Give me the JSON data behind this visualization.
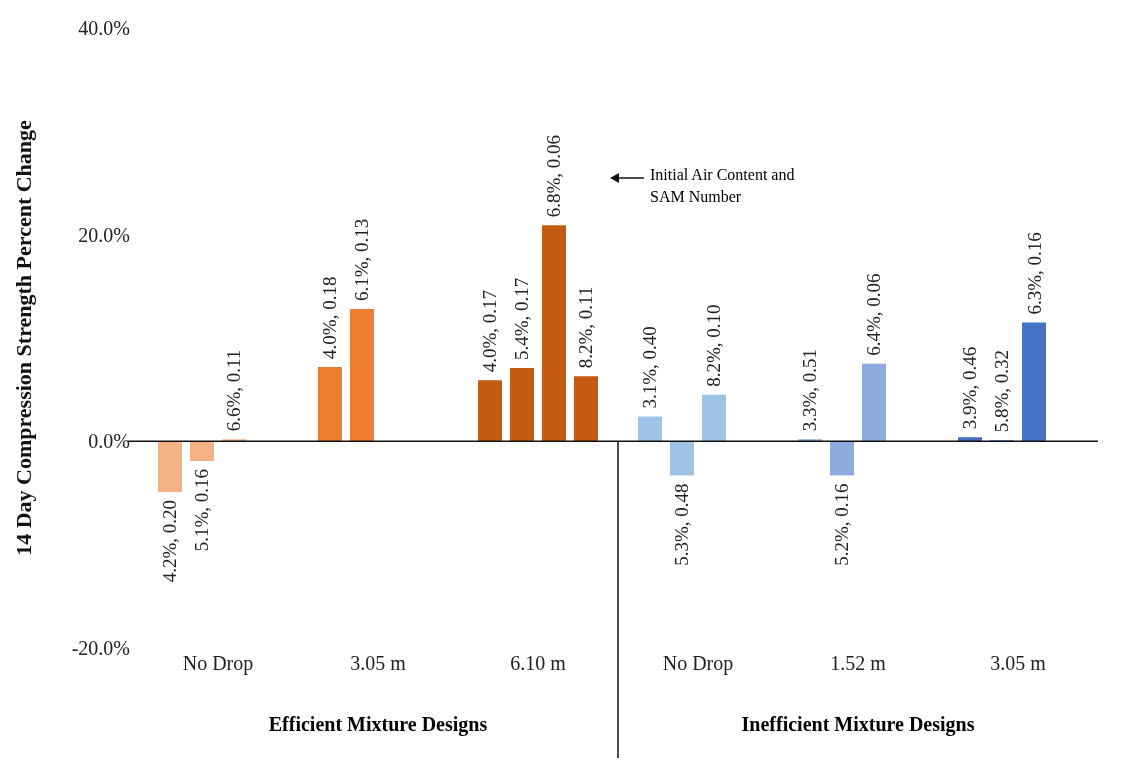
{
  "chart_data": {
    "type": "bar",
    "ylabel": "14 Day Compression Strength Percent Change",
    "categories": [
      "No Drop",
      "3.05 m",
      "6.10 m",
      "No Drop",
      "1.52 m",
      "3.05 m"
    ],
    "series": [
      {
        "colors": [
          "#f4b183",
          "#ed7d31",
          "#c55a11",
          "#9dc3e6",
          "#8faadc",
          "#4472c4"
        ],
        "values": [
          -4.9,
          7.2,
          5.9,
          2.4,
          0.2,
          0.4
        ]
      },
      {
        "colors": [
          "#f4b183",
          "#ed7d31",
          "#c55a11",
          "#9dc3e6",
          "#8faadc",
          "#4472c4"
        ],
        "values": [
          -1.9,
          12.8,
          7.1,
          -3.3,
          -3.3,
          0.1
        ]
      },
      {
        "colors": [
          "#f4b183",
          "#ed7d31",
          "#c55a11",
          "#9dc3e6",
          "#8faadc",
          "#4472c4"
        ],
        "values": [
          0.2,
          null,
          20.9,
          4.5,
          7.5,
          11.5
        ]
      },
      {
        "colors": [
          "#f4b183",
          "#ed7d31",
          "#c55a11",
          "#9dc3e6",
          "#8faadc",
          "#4472c4"
        ],
        "values": [
          null,
          null,
          6.3,
          null,
          null,
          null
        ]
      }
    ],
    "ylim": [
      -20,
      40
    ],
    "yticks": [
      {
        "value": -20,
        "label": "-20.0%"
      },
      {
        "value": 0,
        "label": "0.0%"
      },
      {
        "value": 20,
        "label": "20.0%"
      },
      {
        "value": 40,
        "label": "40.0%"
      }
    ],
    "annotations": [
      "Efficient Mixture Designs",
      "Inefficient Mixture Designs",
      "Initial Air Content and SAM Number",
      "4.2%, 0.20",
      "5.1%, 0.16",
      "6.6%, 0.11",
      "4.0%, 0.18",
      "6.1%, 0.13",
      "4.0%, 0.17",
      "5.4%, 0.17",
      "6.8%, 0.06",
      "8.2%, 0.11",
      "3.1%, 0.40",
      "5.3%, 0.48",
      "8.2%, 0.10",
      "3.3%, 0.51",
      "5.2%, 0.16",
      "6.4%, 0.06",
      "3.9%, 0.46",
      "5.8%, 0.32",
      "6.3%, 0.16"
    ],
    "legend": false
  }
}
